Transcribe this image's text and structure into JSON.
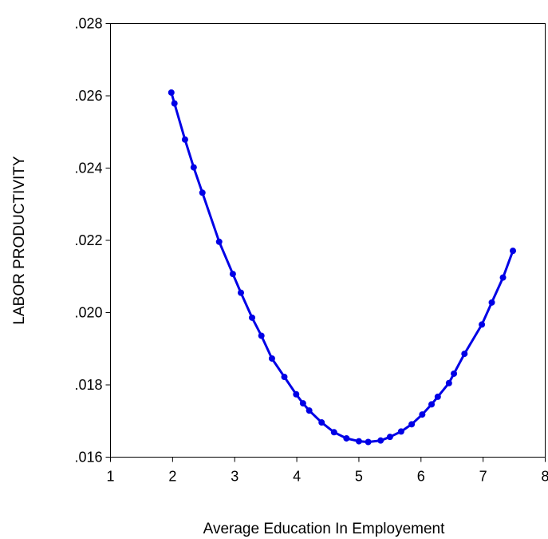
{
  "chart_data": {
    "type": "line",
    "title": "",
    "xlabel": "Average Education In Employement",
    "ylabel": "LABOR PRODUCTIVITY",
    "xlim": [
      1,
      8
    ],
    "ylim": [
      0.016,
      0.028
    ],
    "x_ticks": [
      1,
      2,
      3,
      4,
      5,
      6,
      7,
      8
    ],
    "x_tick_labels": [
      "1",
      "2",
      "3",
      "4",
      "5",
      "6",
      "7",
      "8"
    ],
    "y_ticks": [
      0.016,
      0.018,
      0.02,
      0.022,
      0.024,
      0.026,
      0.028
    ],
    "y_tick_labels": [
      ".016",
      ".018",
      ".020",
      ".022",
      ".024",
      ".026",
      ".028"
    ],
    "grid": false,
    "series_color": "#0000e6",
    "series": [
      {
        "markers": true,
        "x": [
          1.98,
          2.03,
          2.2,
          2.34,
          2.48,
          2.75,
          2.97,
          3.1,
          3.28,
          3.43,
          3.6,
          3.8,
          3.99,
          4.1,
          4.2,
          4.4,
          4.6,
          4.8,
          5.0,
          5.15,
          5.35,
          5.5,
          5.68,
          5.85,
          6.02,
          6.17,
          6.27,
          6.45,
          6.53,
          6.7,
          6.98,
          7.14,
          7.32,
          7.48
        ],
        "y": [
          0.02609,
          0.02579,
          0.02479,
          0.02402,
          0.02332,
          0.02196,
          0.02107,
          0.02055,
          0.01986,
          0.01936,
          0.01873,
          0.01822,
          0.01774,
          0.01749,
          0.01729,
          0.01696,
          0.01669,
          0.01652,
          0.01644,
          0.01642,
          0.01646,
          0.01656,
          0.01671,
          0.01691,
          0.01718,
          0.01746,
          0.01767,
          0.01805,
          0.01831,
          0.01886,
          0.01967,
          0.02028,
          0.02097,
          0.02171
        ]
      }
    ]
  }
}
